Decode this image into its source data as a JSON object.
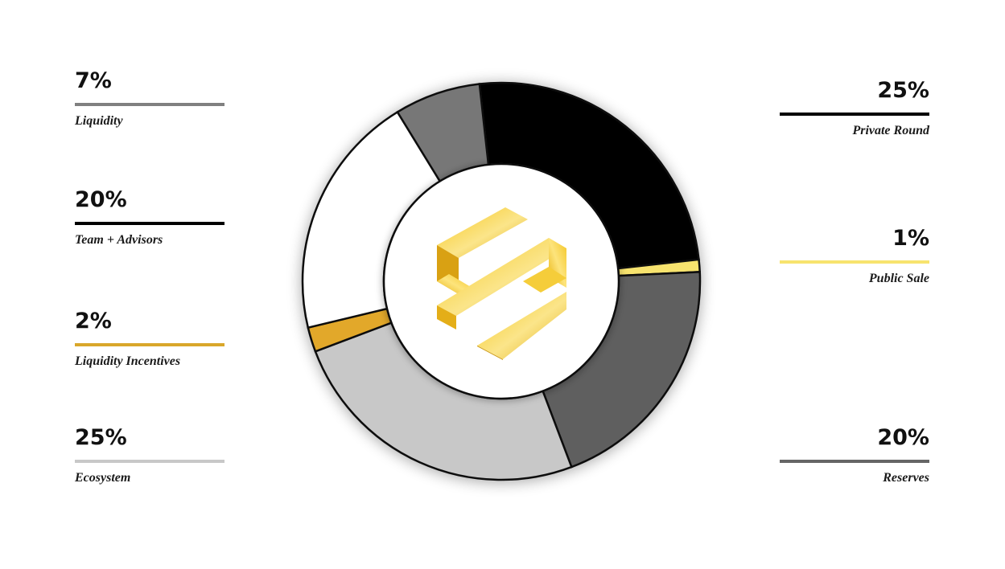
{
  "chart_data": {
    "type": "pie",
    "variant": "donut",
    "categories": [
      "Private Round",
      "Public Sale",
      "Reserves",
      "Ecosystem",
      "Liquidity Incentives",
      "Team + Advisors",
      "Liquidity"
    ],
    "values": [
      25,
      1,
      20,
      25,
      2,
      20,
      7
    ],
    "value_labels": [
      "25%",
      "1%",
      "20%",
      "25%",
      "2%",
      "20%",
      "7%"
    ],
    "colors": [
      "#000000",
      "#f7e36e",
      "#5f5f5f",
      "#c8c8c8",
      "#e2a829",
      "#ffffff",
      "#777777"
    ],
    "center_logo": "gold-s-logo",
    "legend_placement": "split-left-right"
  },
  "legend": {
    "left": [
      {
        "value": "7%",
        "label": "Liquidity",
        "color": "#808080"
      },
      {
        "value": "20%",
        "label": "Team + Advisors",
        "color": "#000000"
      },
      {
        "value": "2%",
        "label": "Liquidity Incentives",
        "color": "#d9a72a"
      },
      {
        "value": "25%",
        "label": "Ecosystem",
        "color": "#c8c8c8"
      }
    ],
    "right": [
      {
        "value": "25%",
        "label": "Private Round",
        "color": "#000000"
      },
      {
        "value": "1%",
        "label": "Public Sale",
        "color": "#f7e36e"
      },
      {
        "value": "20%",
        "label": "Reserves",
        "color": "#666666"
      }
    ]
  }
}
